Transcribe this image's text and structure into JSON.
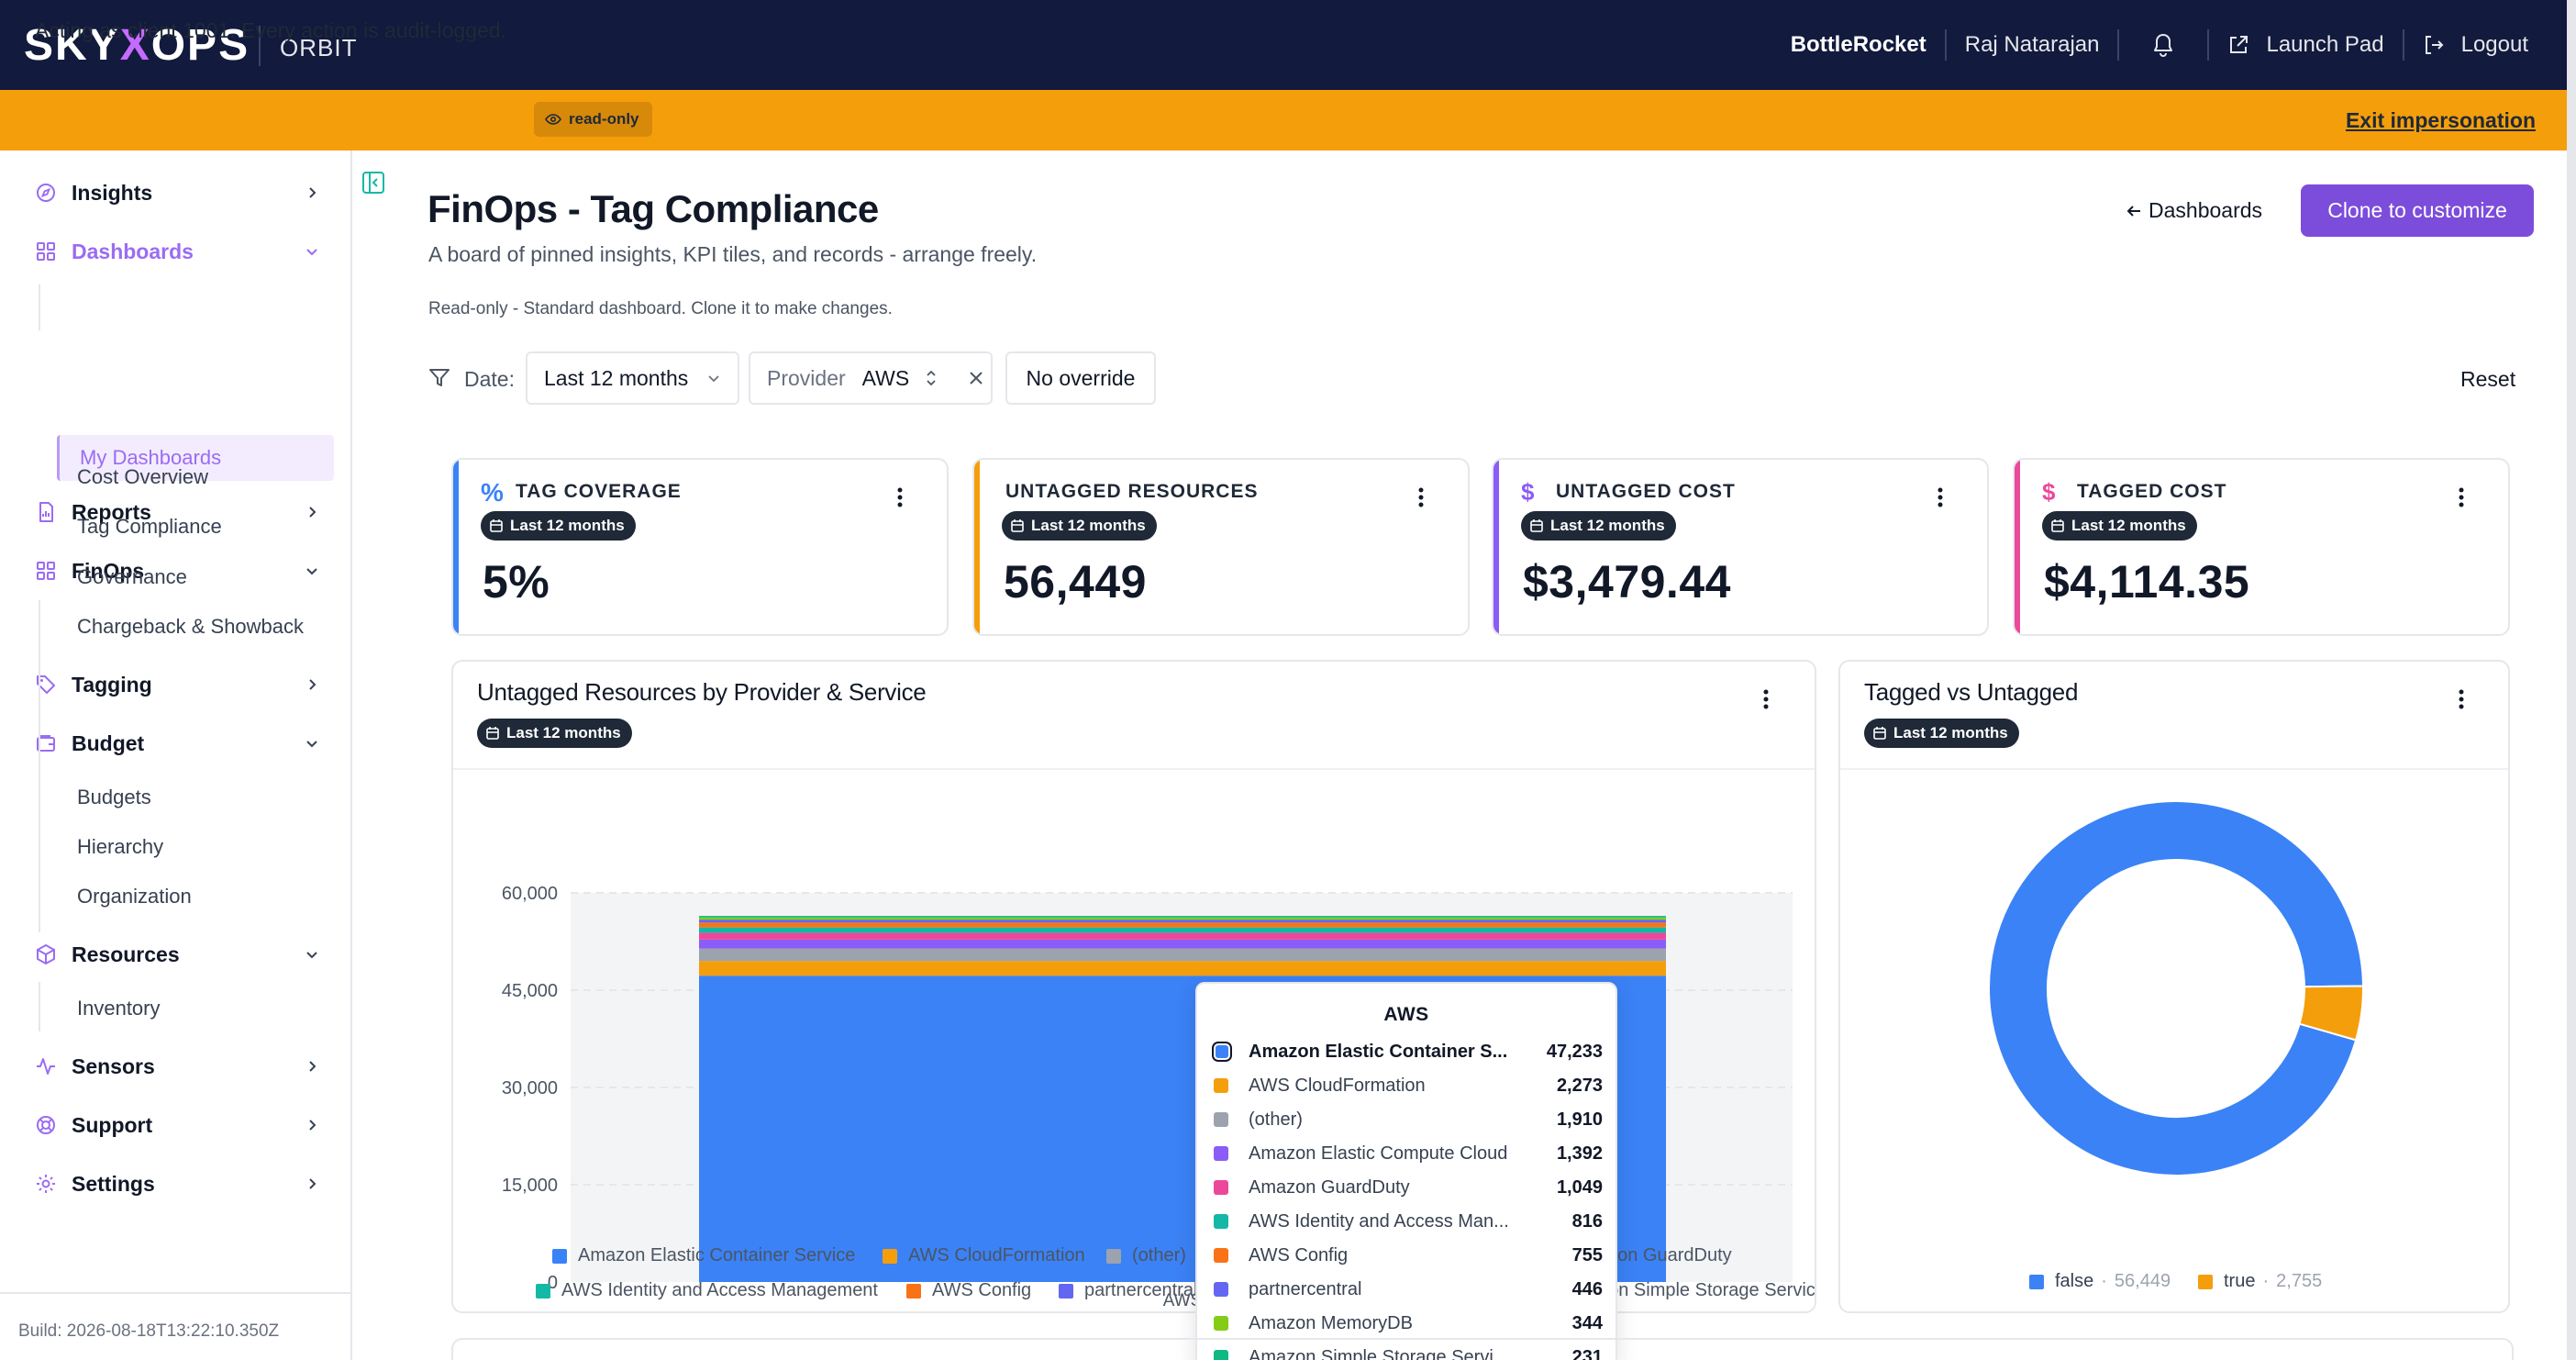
{
  "nav": {
    "logo_pre": "SKY",
    "logo_x": "X",
    "logo_post": "OPS",
    "product": "ORBIT",
    "client": "BottleRocket",
    "user": "Raj Natarajan",
    "launch_pad": "Launch Pad",
    "logout": "Logout"
  },
  "banner": {
    "text": "Acting as client 1001. Every action is audit-logged.",
    "badge": "read-only",
    "exit": "Exit impersonation"
  },
  "sidebar": {
    "insights": "Insights",
    "dashboards": "Dashboards",
    "my_dashboards": "My Dashboards",
    "reports": "Reports",
    "finops": "FinOps",
    "finops_items": [
      "Cost Overview",
      "Tag Compliance",
      "Governance",
      "Chargeback & Showback"
    ],
    "tagging": "Tagging",
    "budget": "Budget",
    "budget_items": [
      "Budgets",
      "Hierarchy",
      "Organization"
    ],
    "resources": "Resources",
    "resources_items": [
      "Inventory"
    ],
    "sensors": "Sensors",
    "support": "Support",
    "settings": "Settings",
    "build": "Build: 2026-08-18T13:22:10.350Z"
  },
  "header": {
    "title": "FinOps - Tag Compliance",
    "subtitle": "A board of pinned insights, KPI tiles, and records - arrange freely.",
    "note": "Read-only - Standard dashboard. Clone it to make changes.",
    "back": "Dashboards",
    "clone": "Clone to customize"
  },
  "filters": {
    "date_label": "Date:",
    "date_value": "Last 12 months",
    "provider_label": "Provider",
    "provider_value": "AWS",
    "override": "No override",
    "reset": "Reset"
  },
  "kpis": [
    {
      "label": "TAG COVERAGE",
      "icon": "%",
      "badge": "Last 12 months",
      "value": "5%",
      "color": "#3b82f6"
    },
    {
      "label": "UNTAGGED RESOURCES",
      "icon": "",
      "badge": "Last 12 months",
      "value": "56,449",
      "color": "#f59e0b"
    },
    {
      "label": "UNTAGGED COST",
      "icon": "$",
      "badge": "Last 12 months",
      "value": "$3,479.44",
      "color": "#8b5cf6"
    },
    {
      "label": "TAGGED COST",
      "icon": "$",
      "badge": "Last 12 months",
      "value": "$4,114.35",
      "color": "#ec4899"
    }
  ],
  "bar_card": {
    "title": "Untagged Resources by Provider & Service",
    "badge": "Last 12 months"
  },
  "donut_card": {
    "title": "Tagged vs Untagged",
    "badge": "Last 12 months"
  },
  "chart_data": [
    {
      "type": "bar",
      "stacked": true,
      "title": "Untagged Resources by Provider & Service",
      "categories": [
        "AWS"
      ],
      "ylim": [
        0,
        60000
      ],
      "yticks": [
        0,
        15000,
        30000,
        45000,
        60000
      ],
      "ytick_labels": [
        "0",
        "15,000",
        "30,000",
        "45,000",
        "60,000"
      ],
      "grid": true,
      "series": [
        {
          "name": "Amazon Elastic Container Service",
          "values": [
            47233
          ],
          "color": "#3b82f6"
        },
        {
          "name": "AWS CloudFormation",
          "values": [
            2273
          ],
          "color": "#f59e0b"
        },
        {
          "name": "(other)",
          "values": [
            1910
          ],
          "color": "#9ca3af"
        },
        {
          "name": "Amazon Elastic Compute Cloud",
          "values": [
            1392
          ],
          "color": "#8b5cf6"
        },
        {
          "name": "Amazon GuardDuty",
          "values": [
            1049
          ],
          "color": "#ec4899"
        },
        {
          "name": "AWS Identity and Access Management",
          "values": [
            816
          ],
          "color": "#14b8a6"
        },
        {
          "name": "AWS Config",
          "values": [
            755
          ],
          "color": "#f97316"
        },
        {
          "name": "partnercentral",
          "values": [
            446
          ],
          "color": "#6366f1"
        },
        {
          "name": "Amazon MemoryDB",
          "values": [
            344
          ],
          "color": "#84cc16"
        },
        {
          "name": "Amazon Simple Storage Service",
          "values": [
            231
          ],
          "color": "#10b981"
        }
      ],
      "tooltip": {
        "title": "AWS",
        "rows": [
          {
            "name": "Amazon Elastic Container S...",
            "value": "47,233",
            "color": "#3b82f6",
            "highlight": true
          },
          {
            "name": "AWS CloudFormation",
            "value": "2,273",
            "color": "#f59e0b"
          },
          {
            "name": "(other)",
            "value": "1,910",
            "color": "#9ca3af"
          },
          {
            "name": "Amazon Elastic Compute Cloud",
            "value": "1,392",
            "color": "#8b5cf6"
          },
          {
            "name": "Amazon GuardDuty",
            "value": "1,049",
            "color": "#ec4899"
          },
          {
            "name": "AWS Identity and Access Man...",
            "value": "816",
            "color": "#14b8a6"
          },
          {
            "name": "AWS Config",
            "value": "755",
            "color": "#f97316"
          },
          {
            "name": "partnercentral",
            "value": "446",
            "color": "#6366f1"
          },
          {
            "name": "Amazon MemoryDB",
            "value": "344",
            "color": "#84cc16"
          },
          {
            "name": "Amazon Simple Storage Servi...",
            "value": "231",
            "color": "#10b981"
          }
        ]
      },
      "legend": [
        {
          "name": "Amazon Elastic Container Service",
          "color": "#3b82f6"
        },
        {
          "name": "AWS CloudFormation",
          "color": "#f59e0b"
        },
        {
          "name": "(other)",
          "color": "#9ca3af"
        },
        {
          "name": "Amazon GuardDuty",
          "color": "#ec4899"
        },
        {
          "name": "AWS Identity and Access Management",
          "color": "#14b8a6"
        },
        {
          "name": "AWS Config",
          "color": "#f97316"
        },
        {
          "name": "partnercentral",
          "color": "#6366f1"
        },
        {
          "name": "Amazon Simple Storage Service",
          "color": "#10b981"
        }
      ]
    },
    {
      "type": "pie",
      "donut": true,
      "title": "Tagged vs Untagged",
      "slices": [
        {
          "name": "false",
          "value": 56449,
          "label": "56,449",
          "color": "#3b82f6"
        },
        {
          "name": "true",
          "value": 2755,
          "label": "2,755",
          "color": "#f59e0b"
        }
      ]
    }
  ]
}
